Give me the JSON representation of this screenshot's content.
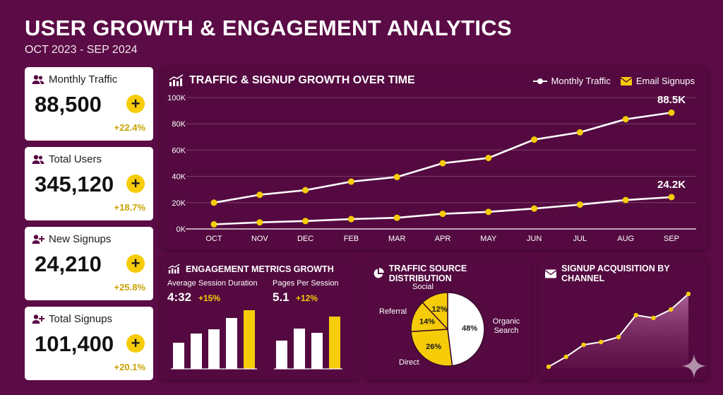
{
  "header": {
    "title": "USER GROWTH & ENGAGEMENT ANALYTICS",
    "subtitle": "OCT 2023 - SEP 2024"
  },
  "kpis": [
    {
      "label": "Monthly Traffic",
      "value": "88,500",
      "change": "+22.4%",
      "icon": "users-icon"
    },
    {
      "label": "Total Users",
      "value": "345,120",
      "change": "+18.7%",
      "icon": "users-icon"
    },
    {
      "label": "New Signups",
      "value": "24,210",
      "change": "+25.8%",
      "icon": "user-plus-icon"
    },
    {
      "label": "Total Signups",
      "value": "101,400",
      "change": "+20.1%",
      "icon": "user-plus-icon"
    }
  ],
  "kpi_plus": "+",
  "colors": {
    "background": "#5b0b45",
    "panel": "#540a40",
    "accent": "#f6cc08",
    "white": "#ffffff"
  },
  "main_chart": {
    "title": "TRAFFIC & SIGNUP GROWTH OVER TIME",
    "legend": {
      "traffic": "Monthly Traffic",
      "signups": "Email Signups"
    },
    "callouts": {
      "traffic": "88.5K",
      "signups": "24.2K"
    },
    "y_ticks": [
      "0K",
      "20K",
      "40K",
      "60K",
      "80K",
      "100K"
    ]
  },
  "chart_data": [
    {
      "type": "line",
      "title": "TRAFFIC & SIGNUP GROWTH OVER TIME",
      "categories": [
        "OCT",
        "NOV",
        "DEC",
        "FEB",
        "MAR",
        "APR",
        "MAY",
        "JUN",
        "JUL",
        "AUG",
        "SEP"
      ],
      "ylim": [
        0,
        100000
      ],
      "grid": true,
      "legend_position": "top-right",
      "series": [
        {
          "name": "Monthly Traffic",
          "values": [
            20000,
            26000,
            29500,
            36000,
            39500,
            50000,
            54000,
            68000,
            73500,
            83500,
            88500
          ]
        },
        {
          "name": "Email Signups",
          "values": [
            3500,
            5000,
            6000,
            7500,
            8500,
            11500,
            13000,
            15500,
            18500,
            22000,
            24200
          ]
        }
      ]
    },
    {
      "type": "bar",
      "title": "ENGAGEMENT METRICS GROWTH",
      "series": [
        {
          "name": "Average Session Duration",
          "values": [
            37,
            50,
            56,
            72,
            83
          ]
        },
        {
          "name": "Pages Per Session",
          "values": [
            40,
            57,
            51,
            74
          ]
        }
      ]
    },
    {
      "type": "pie",
      "title": "TRAFFIC SOURCE DISTRIBUTION",
      "categories": [
        "Organic Search",
        "Direct",
        "Referral",
        "Social"
      ],
      "values": [
        48,
        26,
        14,
        12
      ]
    },
    {
      "type": "area",
      "title": "SIGNUP ACQUISITION BY CHANNEL",
      "values": [
        2,
        16,
        33,
        37,
        44,
        75,
        71,
        83,
        105
      ]
    }
  ],
  "engagement": {
    "title": "ENGAGEMENT METRICS GROWTH",
    "session": {
      "label": "Average Session Duration",
      "value": "4:32",
      "change": "+15%"
    },
    "pages": {
      "label": "Pages Per Session",
      "value": "5.1",
      "change": "+12%"
    }
  },
  "traffic_source": {
    "title": "TRAFFIC SOURCE DISTRIBUTION",
    "labels": {
      "organic": "Organic Search",
      "direct": "Direct",
      "referral": "Referral",
      "social": "Social"
    },
    "pcts": {
      "organic": "48%",
      "direct": "26%",
      "referral": "14%",
      "social": "12%"
    }
  },
  "signup_channel": {
    "title": "SIGNUP ACQUISITION BY CHANNEL"
  }
}
